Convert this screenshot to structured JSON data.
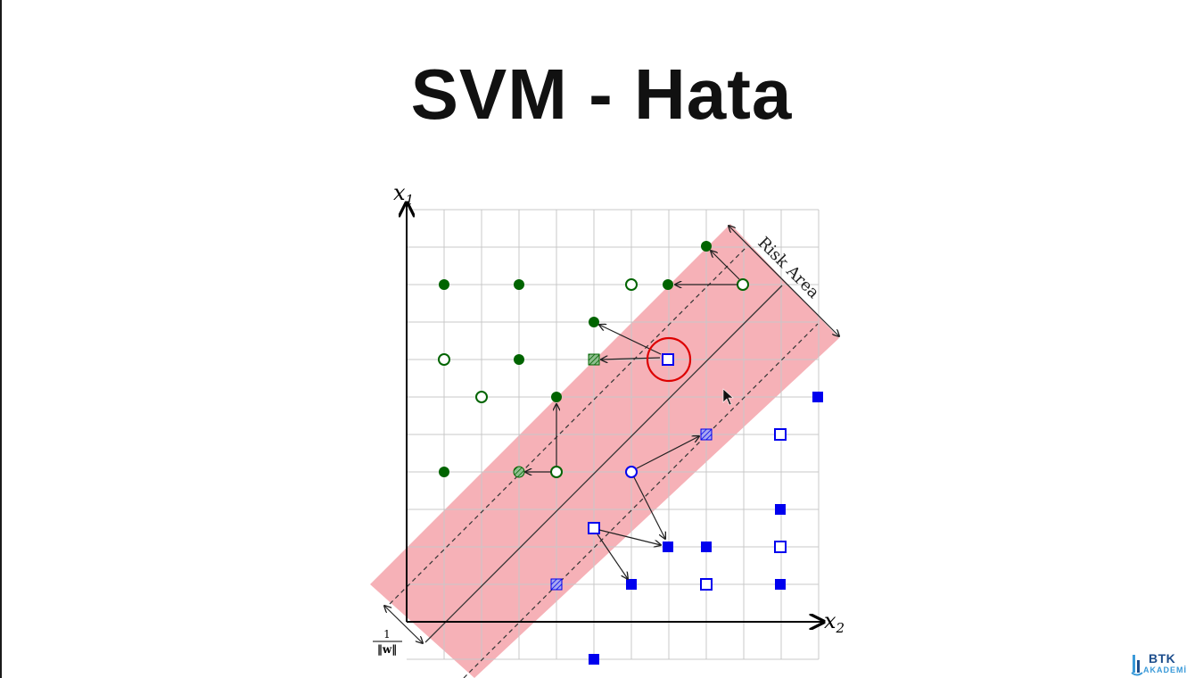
{
  "slide": {
    "title": "SVM - Hata"
  },
  "diagram": {
    "axis_y_label": "x1",
    "axis_x_label": "x2",
    "risk_label": "Risk Area",
    "margin_label": "1/‖w‖",
    "colors": {
      "class_a": "#006400",
      "class_b": "#0000ee",
      "risk_band": "#f4a3aa",
      "highlight": "#dd0000",
      "grid": "#c8c8c8"
    }
  },
  "brand": {
    "name": "BTK",
    "sub": "AKADEMİ"
  }
}
